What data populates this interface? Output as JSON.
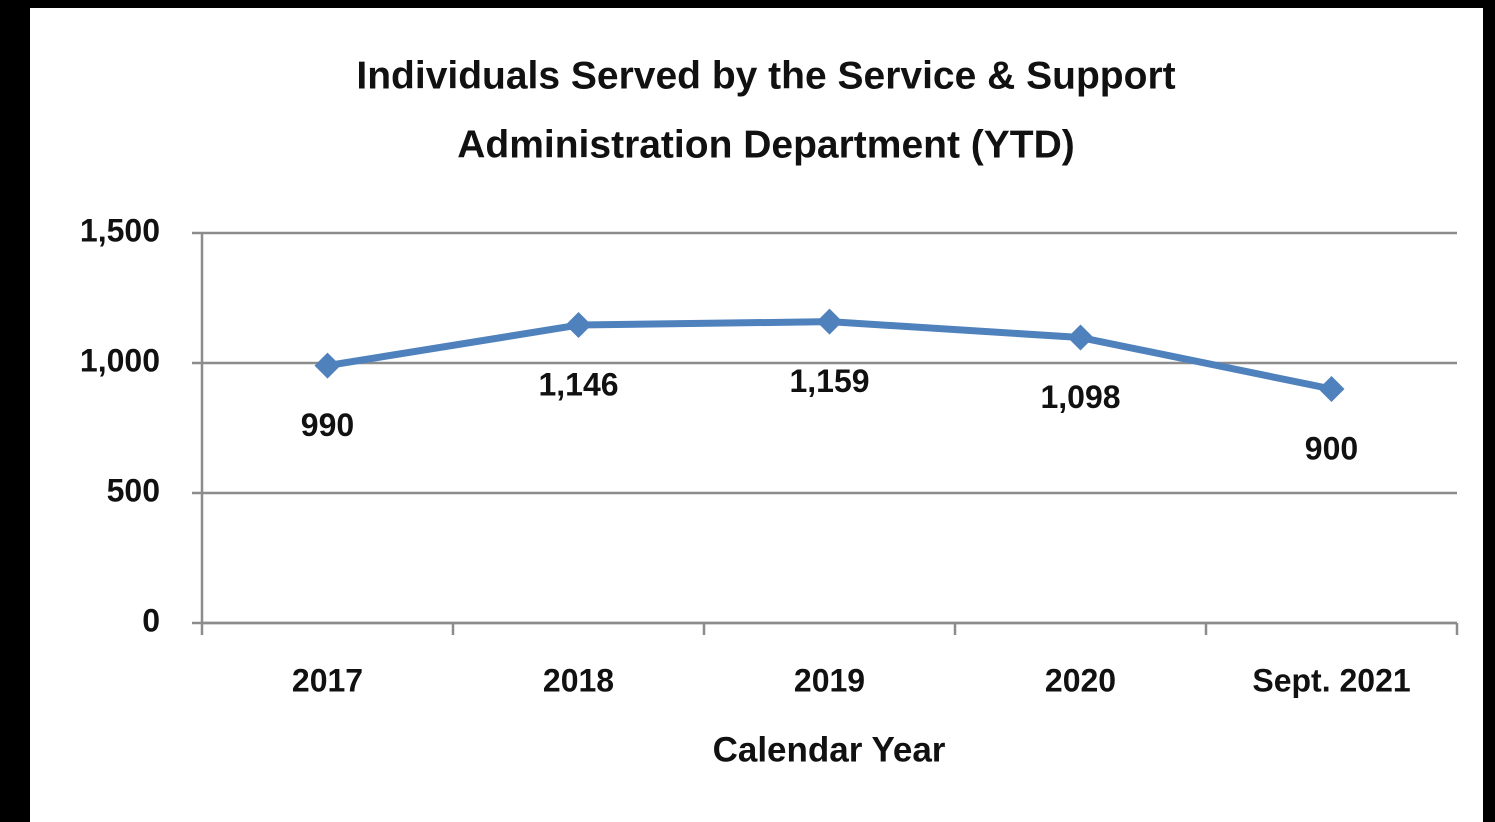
{
  "chart_data": {
    "type": "line",
    "title": [
      "Individuals Served by the Service & Support",
      "Administration Department (YTD)"
    ],
    "x_label": "Calendar Year",
    "categories": [
      "2017",
      "2018",
      "2019",
      "2020",
      "Sept. 2021"
    ],
    "values": [
      990,
      1146,
      1159,
      1098,
      900
    ],
    "value_labels": [
      "990",
      "1,146",
      "1,159",
      "1,098",
      "900"
    ],
    "color": "#4f81bd",
    "ylim": [
      0,
      1500
    ],
    "yticks": [
      0,
      500,
      {
        "value": 1000,
        "label": "1,000"
      },
      {
        "value": 1500,
        "label": "1,500"
      }
    ],
    "grid": true
  }
}
